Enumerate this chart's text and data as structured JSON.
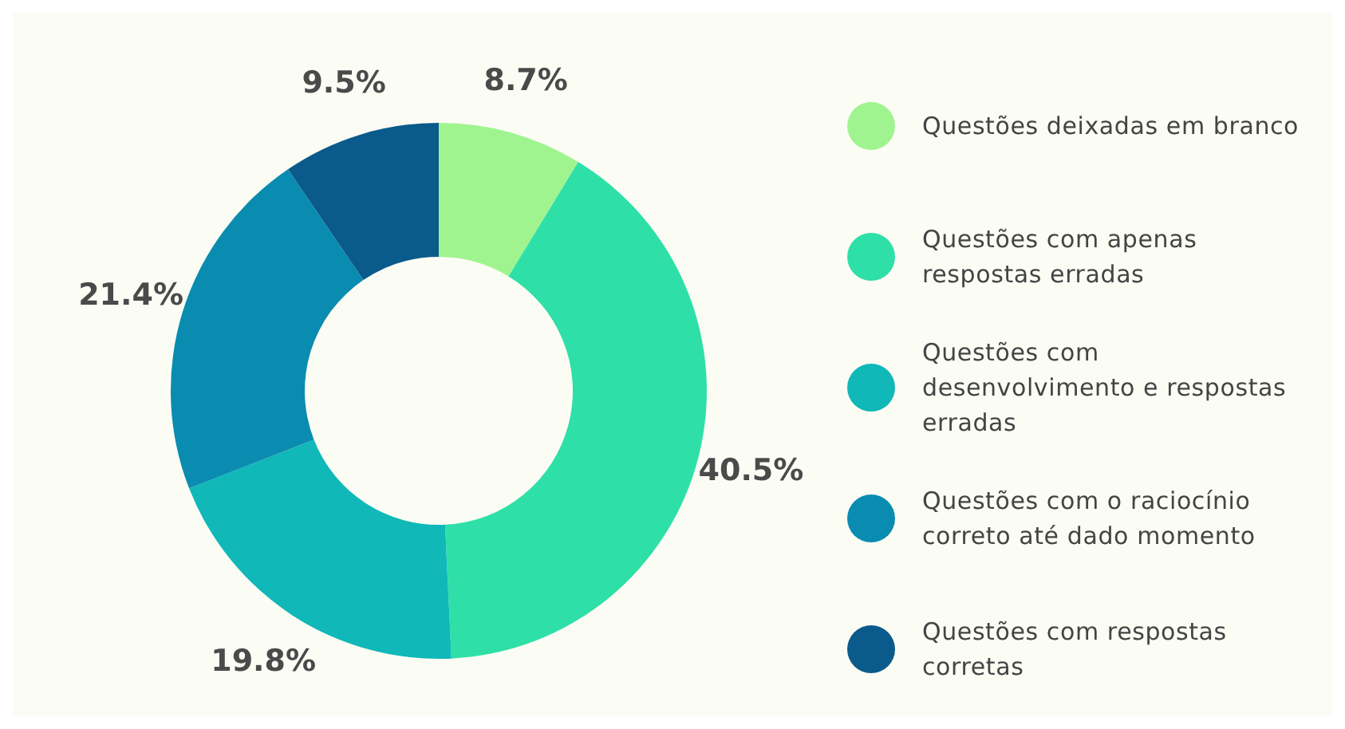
{
  "chart_data": {
    "type": "donut",
    "categories": [
      "Questões deixadas em branco",
      "Questões com apenas respostas erradas",
      "Questões com desenvolvimento e respostas erradas",
      "Questões com o raciocínio correto até dado momento",
      "Questões com respostas corretas"
    ],
    "values": [
      8.7,
      40.5,
      19.8,
      21.4,
      9.5
    ],
    "colors": [
      "#a0f490",
      "#2ee0a8",
      "#10b8b8",
      "#0a8cb0",
      "#0a5a8c"
    ],
    "value_labels": [
      "8.7%",
      "40.5%",
      "19.8%",
      "21.4%",
      "9.5%"
    ],
    "legend": "right"
  }
}
